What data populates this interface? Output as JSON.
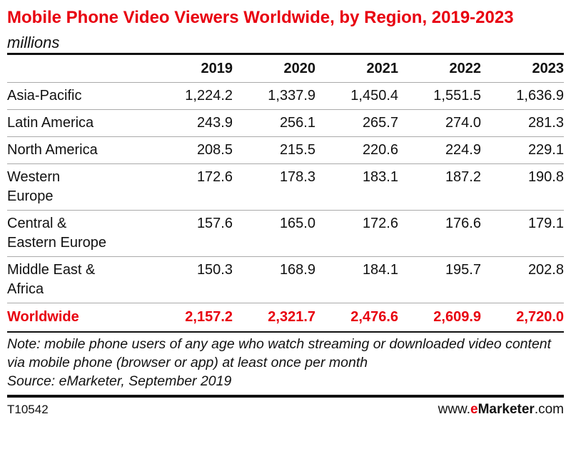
{
  "chart_data": {
    "type": "table",
    "title": "Mobile Phone Video Viewers Worldwide, by Region, 2019-2023",
    "subtitle": "millions",
    "columns": [
      "2019",
      "2020",
      "2021",
      "2022",
      "2023"
    ],
    "rows": [
      {
        "label": "Asia-Pacific",
        "values": [
          "1,224.2",
          "1,337.9",
          "1,450.4",
          "1,551.5",
          "1,636.9"
        ]
      },
      {
        "label": "Latin America",
        "values": [
          "243.9",
          "256.1",
          "265.7",
          "274.0",
          "281.3"
        ]
      },
      {
        "label": "North America",
        "values": [
          "208.5",
          "215.5",
          "220.6",
          "224.9",
          "229.1"
        ]
      },
      {
        "label": "Western Europe",
        "values": [
          "172.6",
          "178.3",
          "183.1",
          "187.2",
          "190.8"
        ]
      },
      {
        "label": "Central & Eastern Europe",
        "values": [
          "157.6",
          "165.0",
          "172.6",
          "176.6",
          "179.1"
        ]
      },
      {
        "label": "Middle East & Africa",
        "values": [
          "150.3",
          "168.9",
          "184.1",
          "195.7",
          "202.8"
        ]
      }
    ],
    "total": {
      "label": "Worldwide",
      "values": [
        "2,157.2",
        "2,321.7",
        "2,476.6",
        "2,609.9",
        "2,720.0"
      ]
    },
    "note": "Note: mobile phone users of any age who watch streaming or downloaded video content via mobile phone (browser or app) at least once per month",
    "source": "Source: eMarketer, September 2019",
    "colors": {
      "accent": "#e8000f",
      "text": "#111111"
    }
  },
  "footer": {
    "id": "T10542",
    "logo_prefix": "www.",
    "logo_e": "e",
    "logo_brand": "Marketer",
    "logo_suffix": ".com"
  }
}
